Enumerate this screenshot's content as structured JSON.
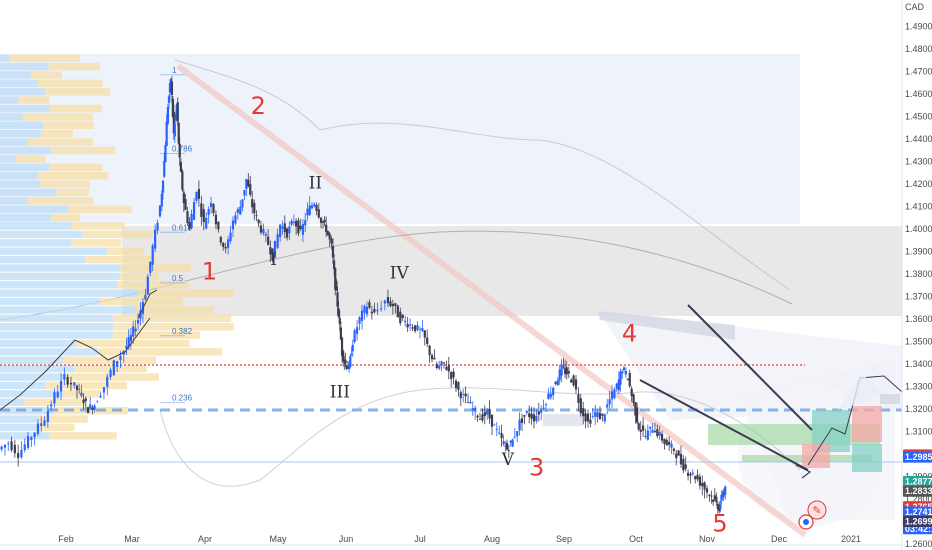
{
  "chart_data": {
    "type": "candlestick",
    "currency": "CAD",
    "y_axis": {
      "ticks": [
        "1.49000",
        "1.48000",
        "1.47000",
        "1.46000",
        "1.45000",
        "1.44000",
        "1.43000",
        "1.42000",
        "1.41000",
        "1.40000",
        "1.39000",
        "1.38000",
        "1.37000",
        "1.36000",
        "1.35000",
        "1.34000",
        "1.33000",
        "1.32000",
        "1.31000",
        "1.30000",
        "1.29000",
        "1.28000",
        "1.27000",
        "1.26000"
      ],
      "range": [
        1.2595,
        1.4995
      ]
    },
    "x_axis": {
      "labels": [
        "Feb",
        "Mar",
        "Apr",
        "May",
        "Jun",
        "Jul",
        "Aug",
        "Sep",
        "Oct",
        "Nov",
        "Dec",
        "2021"
      ]
    },
    "price_tags": [
      {
        "value": "1.29955",
        "color": "#e53935",
        "price": 1.29955
      },
      {
        "value": "1.29866",
        "color": "#26a69a",
        "price": 1.29866
      },
      {
        "value": "1.29855",
        "color": "#2962ff",
        "price": 1.29855
      },
      {
        "value": "1.28778",
        "color": "#26a69a",
        "price": 1.28778
      },
      {
        "value": "1.28358",
        "color": "#e53935",
        "price": 1.28358
      },
      {
        "value": "1.28339",
        "color": "#555555",
        "price": 1.28339
      },
      {
        "value": "1.27650",
        "color": "#e53935",
        "price": 1.2765
      },
      {
        "value": "1.27418",
        "color": "#2962ff",
        "price": 1.27418
      },
      {
        "value": "03:42:15",
        "color": "#2962ff",
        "price": 1.2667
      },
      {
        "value": "1.26992",
        "color": "#3a3a6a",
        "price": 1.26992
      }
    ],
    "fib_levels": [
      {
        "label": "1",
        "price": 1.4685
      },
      {
        "label": "0.786",
        "price": 1.4335
      },
      {
        "label": "0.618",
        "price": 1.3985
      },
      {
        "label": "0.5",
        "price": 1.376
      },
      {
        "label": "0.382",
        "price": 1.3525
      },
      {
        "label": "0.236",
        "price": 1.3228
      }
    ],
    "wave_labels": [
      {
        "text": "1",
        "style": "red",
        "month": 3.06,
        "price": 1.3775
      },
      {
        "text": "2",
        "style": "red",
        "month": 3.73,
        "price": 1.451
      },
      {
        "text": "3",
        "style": "red",
        "month": 7.62,
        "price": 1.2905
      },
      {
        "text": "4",
        "style": "red",
        "month": 8.91,
        "price": 1.35
      },
      {
        "text": "5",
        "style": "red",
        "month": 10.18,
        "price": 1.2655
      },
      {
        "text": "I",
        "style": "dark",
        "month": 3.94,
        "price": 1.384
      },
      {
        "text": "II",
        "style": "dark",
        "month": 4.55,
        "price": 1.418
      },
      {
        "text": "III",
        "style": "dark",
        "month": 4.91,
        "price": 1.325
      },
      {
        "text": "IV",
        "style": "dark",
        "month": 5.72,
        "price": 1.378
      },
      {
        "text": "V",
        "style": "dark",
        "month": 7.22,
        "price": 1.295
      }
    ],
    "price_path": [
      [
        0.0,
        1.302
      ],
      [
        0.15,
        1.305
      ],
      [
        0.3,
        1.3
      ],
      [
        0.5,
        1.308
      ],
      [
        0.7,
        1.316
      ],
      [
        0.85,
        1.326
      ],
      [
        1.0,
        1.334
      ],
      [
        1.15,
        1.33
      ],
      [
        1.25,
        1.326
      ],
      [
        1.35,
        1.32
      ],
      [
        1.45,
        1.322
      ],
      [
        1.6,
        1.33
      ],
      [
        1.75,
        1.34
      ],
      [
        1.9,
        1.346
      ],
      [
        2.0,
        1.352
      ],
      [
        2.1,
        1.36
      ],
      [
        2.2,
        1.372
      ],
      [
        2.3,
        1.392
      ],
      [
        2.4,
        1.41
      ],
      [
        2.45,
        1.43
      ],
      [
        2.5,
        1.455
      ],
      [
        2.54,
        1.467
      ],
      [
        2.58,
        1.442
      ],
      [
        2.62,
        1.455
      ],
      [
        2.66,
        1.43
      ],
      [
        2.72,
        1.412
      ],
      [
        2.8,
        1.4
      ],
      [
        2.9,
        1.418
      ],
      [
        3.0,
        1.402
      ],
      [
        3.1,
        1.413
      ],
      [
        3.2,
        1.398
      ],
      [
        3.3,
        1.39
      ],
      [
        3.4,
        1.404
      ],
      [
        3.5,
        1.41
      ],
      [
        3.58,
        1.422
      ],
      [
        3.66,
        1.41
      ],
      [
        3.75,
        1.402
      ],
      [
        3.85,
        1.396
      ],
      [
        3.94,
        1.388
      ],
      [
        4.05,
        1.402
      ],
      [
        4.15,
        1.398
      ],
      [
        4.25,
        1.404
      ],
      [
        4.35,
        1.398
      ],
      [
        4.45,
        1.408
      ],
      [
        4.55,
        1.412
      ],
      [
        4.65,
        1.404
      ],
      [
        4.72,
        1.4
      ],
      [
        4.8,
        1.392
      ],
      [
        4.85,
        1.375
      ],
      [
        4.9,
        1.362
      ],
      [
        4.95,
        1.345
      ],
      [
        5.0,
        1.34
      ],
      [
        5.05,
        1.338
      ],
      [
        5.1,
        1.35
      ],
      [
        5.2,
        1.36
      ],
      [
        5.3,
        1.366
      ],
      [
        5.4,
        1.362
      ],
      [
        5.55,
        1.368
      ],
      [
        5.65,
        1.366
      ],
      [
        5.75,
        1.36
      ],
      [
        5.85,
        1.358
      ],
      [
        5.95,
        1.356
      ],
      [
        6.05,
        1.354
      ],
      [
        6.15,
        1.345
      ],
      [
        6.25,
        1.338
      ],
      [
        6.35,
        1.34
      ],
      [
        6.45,
        1.335
      ],
      [
        6.55,
        1.328
      ],
      [
        6.65,
        1.324
      ],
      [
        6.75,
        1.32
      ],
      [
        6.85,
        1.316
      ],
      [
        6.95,
        1.318
      ],
      [
        7.05,
        1.312
      ],
      [
        7.15,
        1.306
      ],
      [
        7.22,
        1.302
      ],
      [
        7.3,
        1.306
      ],
      [
        7.4,
        1.314
      ],
      [
        7.5,
        1.318
      ],
      [
        7.6,
        1.316
      ],
      [
        7.7,
        1.32
      ],
      [
        7.8,
        1.326
      ],
      [
        7.9,
        1.332
      ],
      [
        7.98,
        1.338
      ],
      [
        8.05,
        1.336
      ],
      [
        8.15,
        1.332
      ],
      [
        8.25,
        1.32
      ],
      [
        8.35,
        1.314
      ],
      [
        8.45,
        1.318
      ],
      [
        8.55,
        1.316
      ],
      [
        8.65,
        1.324
      ],
      [
        8.75,
        1.33
      ],
      [
        8.82,
        1.338
      ],
      [
        8.9,
        1.334
      ],
      [
        8.98,
        1.322
      ],
      [
        9.05,
        1.312
      ],
      [
        9.15,
        1.308
      ],
      [
        9.25,
        1.312
      ],
      [
        9.35,
        1.308
      ],
      [
        9.45,
        1.304
      ],
      [
        9.55,
        1.302
      ],
      [
        9.65,
        1.296
      ],
      [
        9.75,
        1.292
      ],
      [
        9.85,
        1.29
      ],
      [
        9.95,
        1.286
      ],
      [
        10.05,
        1.282
      ],
      [
        10.12,
        1.279
      ],
      [
        10.18,
        1.276
      ],
      [
        10.22,
        1.282
      ],
      [
        10.26,
        1.284
      ]
    ]
  }
}
